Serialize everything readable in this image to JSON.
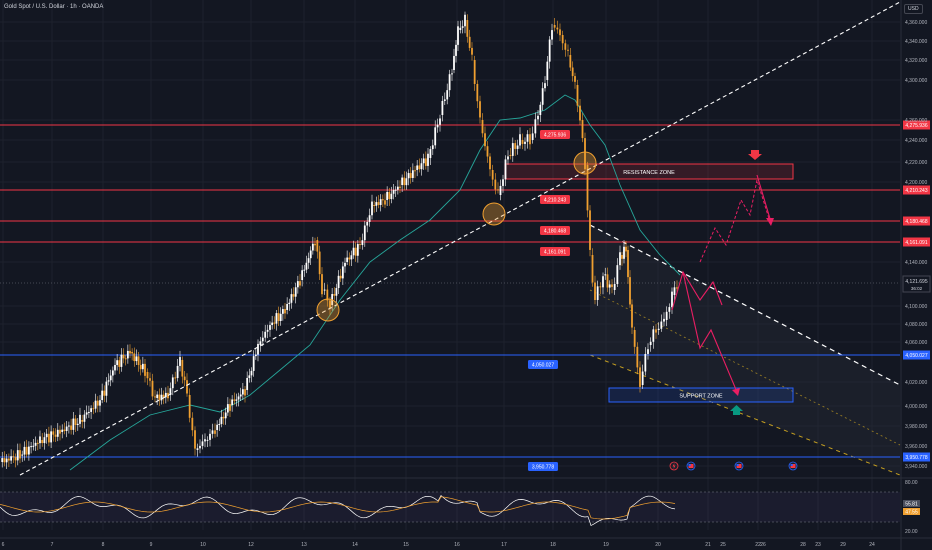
{
  "header": {
    "title": "Gold Spot / U.S. Dollar · 1h · OANDA",
    "currency": "USD"
  },
  "price_axis": {
    "ticks": [
      "4,360.000",
      "4,340.000",
      "4,320.000",
      "4,300.000",
      "4,260.000",
      "4,240.000",
      "4,220.000",
      "4,200.000",
      "4,140.000",
      "4,100.000",
      "4,080.000",
      "4,060.000",
      "4,020.000",
      "4,000.000",
      "3,980.000",
      "3,960.000",
      "3,940.000"
    ]
  },
  "indicator_axis": {
    "ticks": [
      "80.00",
      "20.00"
    ],
    "badges": [
      {
        "label": "55.81",
        "color": "#4a4e5c"
      },
      {
        "label": "47.55",
        "color": "#f0a030"
      }
    ]
  },
  "time_axis": {
    "labels": [
      "6",
      "7",
      "8",
      "9",
      "10",
      "12",
      "13",
      "14",
      "15",
      "16",
      "17",
      "18",
      "19",
      "20",
      "21",
      "22",
      "23",
      "24",
      "25",
      "26",
      "28",
      "29"
    ]
  },
  "levels": [
    {
      "price": "4,275.936",
      "color": "#f23645"
    },
    {
      "price": "4,210.243",
      "color": "#f23645"
    },
    {
      "price": "4,180.468",
      "color": "#f23645"
    },
    {
      "price": "4,161.091",
      "color": "#f23645"
    },
    {
      "price": "4,050.027",
      "color": "#2962ff"
    },
    {
      "price": "3,950.778",
      "color": "#2962ff"
    }
  ],
  "last_price": {
    "value": "4,121.695",
    "countdown": "36:02"
  },
  "zones": {
    "resistance": "RESISTANCE ZONE",
    "support": "SUPPORT ZONE"
  },
  "colors": {
    "background": "#131722",
    "bull_candle": "#ffffff",
    "bear_candle": "#f0a030",
    "resistance": "#f23645",
    "support": "#2962ff",
    "moving_average": "#26a69a",
    "projection": "#e91e63",
    "trendline": "#ffffff",
    "channel_lower": "#f0c020"
  },
  "icons": [
    "lightning-event-icon",
    "us-flag-event-icon",
    "us-flag-event-icon",
    "us-flag-event-icon"
  ]
}
